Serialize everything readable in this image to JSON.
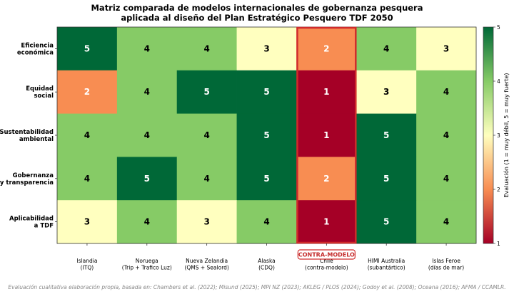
{
  "chart_data": {
    "type": "heatmap",
    "title": "Matriz comparada de modelos internacionales de gobernanza pesquera\naplicada al diseño del Plan Estratégico Pesquero TDF 2050",
    "rows": [
      "Eficiencia\neconómica",
      "Equidad\nsocial",
      "Sustentabilidad\nambiental",
      "Gobernanza\ny transparencia",
      "Aplicabilidad\na TDF"
    ],
    "columns": [
      "Islandia\n(ITQ)",
      "Noruega\n(Trip + Trafico Luz)",
      "Nueva Zelandia\n(QMS + Sealord)",
      "Alaska\n(CDQ)",
      "Chile\n(contra-modelo)",
      "HIMI Australia\n(subantártico)",
      "Islas Feroe\n(días de mar)"
    ],
    "values": [
      [
        5,
        4,
        4,
        3,
        2,
        4,
        3
      ],
      [
        2,
        4,
        5,
        5,
        1,
        3,
        4
      ],
      [
        4,
        4,
        4,
        5,
        1,
        5,
        4
      ],
      [
        4,
        5,
        4,
        5,
        2,
        5,
        4
      ],
      [
        3,
        4,
        3,
        4,
        1,
        5,
        4
      ]
    ],
    "value_range": [
      1,
      5
    ],
    "highlight_column": 4,
    "highlight_label": "CONTRA-MODELO",
    "colorbar": {
      "label": "Evaluación (1 = muy débil, 5 = muy fuerte)",
      "ticks": [
        1,
        2,
        3,
        4,
        5
      ]
    },
    "colors": {
      "1": "#a50026",
      "2": "#f88d52",
      "3": "#ffffbf",
      "4": "#86cb66",
      "5": "#006837",
      "highlight": "#d02b2b"
    }
  },
  "footer": "Evaluación cualitativa elaboración propia, basada en: Chambers et al. (2022); Misund (2025); MPI NZ (2023); AKLEG / PLOS (2024); Godoy et al. (2008); Oceana (2016); AFMA / CCAMLR."
}
